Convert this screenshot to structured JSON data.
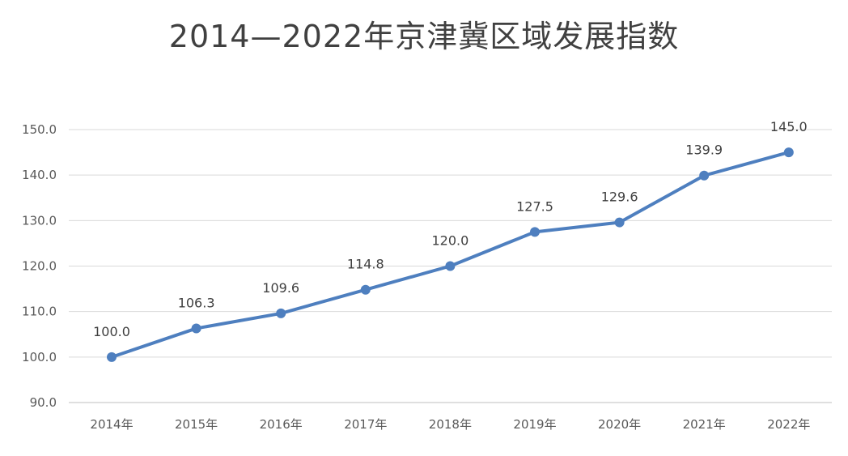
{
  "chart_data": {
    "type": "line",
    "title": "2014—2022年京津冀区域发展指数",
    "xlabel": "",
    "ylabel": "",
    "categories": [
      "2014年",
      "2015年",
      "2016年",
      "2017年",
      "2018年",
      "2019年",
      "2020年",
      "2021年",
      "2022年"
    ],
    "series": [
      {
        "values": [
          100.0,
          106.3,
          109.6,
          114.8,
          120.0,
          127.5,
          129.6,
          139.9,
          145.0
        ],
        "data_labels": [
          "100.0",
          "106.3",
          "109.6",
          "114.8",
          "120.0",
          "127.5",
          "129.6",
          "139.9",
          "145.0"
        ]
      }
    ],
    "ylim": [
      90,
      150
    ],
    "y_ticks": [
      "90.0",
      "100.0",
      "110.0",
      "120.0",
      "130.0",
      "140.0",
      "150.0"
    ],
    "grid": true,
    "legend": "none",
    "colors": {
      "line": "#4e7fbf",
      "grid": "#d9d9d9",
      "axis": "#bfbfbf"
    }
  }
}
